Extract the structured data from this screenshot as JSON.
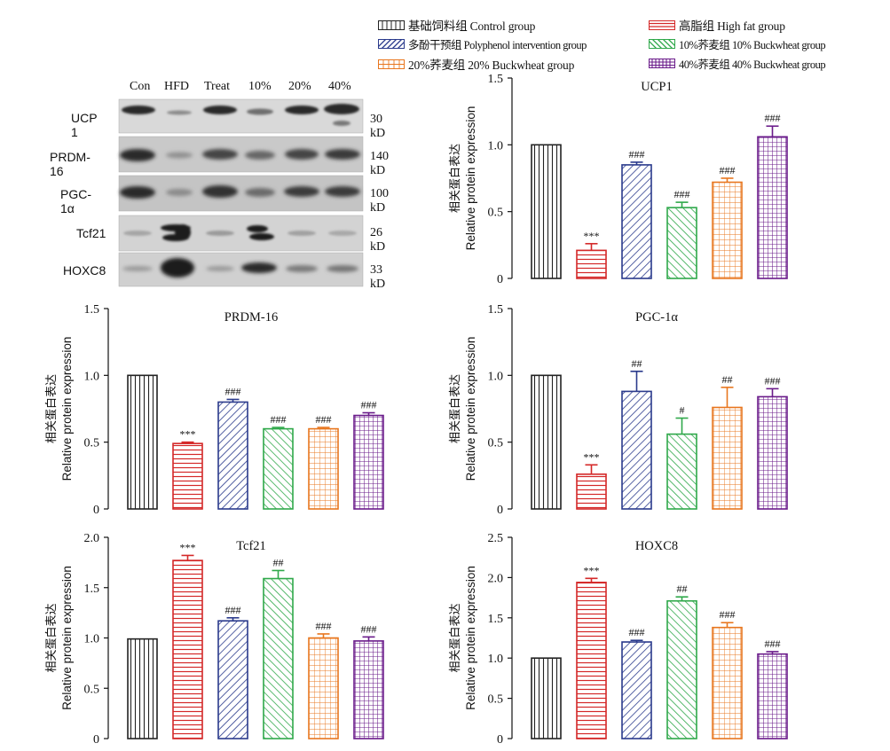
{
  "legend": {
    "items": [
      {
        "label": "基础饲料组 Control group",
        "color": "#222222",
        "pattern": "vertical"
      },
      {
        "label": "高脂组 High fat group",
        "color": "#d42828",
        "pattern": "horizontal"
      },
      {
        "label": "多酚干预组 Polyphenol intervention group",
        "color": "#2a3a8c",
        "pattern": "diagonal"
      },
      {
        "label": "10%荞麦组 10% Buckwheat group",
        "color": "#2fa84a",
        "pattern": "diagonal-back"
      },
      {
        "label": "20%荞麦组 20% Buckwheat group",
        "color": "#e8761e",
        "pattern": "grid"
      },
      {
        "label": "40%荞麦组 40% Buckwheat group",
        "color": "#6a1b8a",
        "pattern": "grid-dense"
      }
    ]
  },
  "western_blot": {
    "lanes": [
      "Con",
      "HFD",
      "Treat",
      "10%",
      "20%",
      "40%"
    ],
    "rows": [
      {
        "protein": "UCP 1",
        "size": "30 kD"
      },
      {
        "protein": "PRDM-16",
        "size": "140 kD"
      },
      {
        "protein": "PGC-1α",
        "size": "100 kD"
      },
      {
        "protein": "Tcf21",
        "size": "26 kD"
      },
      {
        "protein": "HOXC8",
        "size": "33 kD"
      }
    ]
  },
  "y_label_cn": "相关蛋白表达",
  "y_label_en": "Relative protein expression",
  "chart_data": [
    {
      "type": "bar",
      "title": "UCP1",
      "ylim": [
        0,
        1.5
      ],
      "ticks": [
        "0",
        "0.5",
        "1.0",
        "1.5"
      ],
      "values": [
        1.0,
        0.21,
        0.85,
        0.53,
        0.72,
        1.06
      ],
      "errors": [
        0,
        0.05,
        0.02,
        0.04,
        0.03,
        0.08
      ],
      "marks": [
        "",
        "***",
        "###",
        "###",
        "###",
        "###"
      ]
    },
    {
      "type": "bar",
      "title": "PRDM-16",
      "ylim": [
        0,
        1.5
      ],
      "ticks": [
        "0",
        "0.5",
        "1.0",
        "1.5"
      ],
      "values": [
        1.0,
        0.49,
        0.8,
        0.6,
        0.6,
        0.7
      ],
      "errors": [
        0,
        0.01,
        0.02,
        0.01,
        0.01,
        0.02
      ],
      "marks": [
        "",
        "***",
        "###",
        "###",
        "###",
        "###"
      ]
    },
    {
      "type": "bar",
      "title": "PGC-1α",
      "ylim": [
        0,
        1.5
      ],
      "ticks": [
        "0",
        "0.5",
        "1.0",
        "1.5"
      ],
      "values": [
        1.0,
        0.26,
        0.88,
        0.56,
        0.76,
        0.84
      ],
      "errors": [
        0,
        0.07,
        0.15,
        0.12,
        0.15,
        0.06
      ],
      "marks": [
        "",
        "***",
        "##",
        "#",
        "##",
        "###"
      ]
    },
    {
      "type": "bar",
      "title": "Tcf21",
      "ylim": [
        0,
        2.0
      ],
      "ticks": [
        "0",
        "0.5",
        "1.0",
        "1.5",
        "2.0"
      ],
      "values": [
        0.99,
        1.77,
        1.17,
        1.59,
        1.0,
        0.97
      ],
      "errors": [
        0,
        0.05,
        0.03,
        0.08,
        0.04,
        0.04
      ],
      "marks": [
        "",
        "***",
        "###",
        "##",
        "###",
        "###"
      ]
    },
    {
      "type": "bar",
      "title": "HOXC8",
      "ylim": [
        0,
        2.5
      ],
      "ticks": [
        "0",
        "0.5",
        "1.0",
        "1.5",
        "2.0",
        "2.5"
      ],
      "values": [
        1.0,
        1.94,
        1.2,
        1.71,
        1.38,
        1.05
      ],
      "errors": [
        0,
        0.05,
        0.02,
        0.05,
        0.06,
        0.03
      ],
      "marks": [
        "",
        "***",
        "###",
        "##",
        "###",
        "###"
      ]
    }
  ]
}
